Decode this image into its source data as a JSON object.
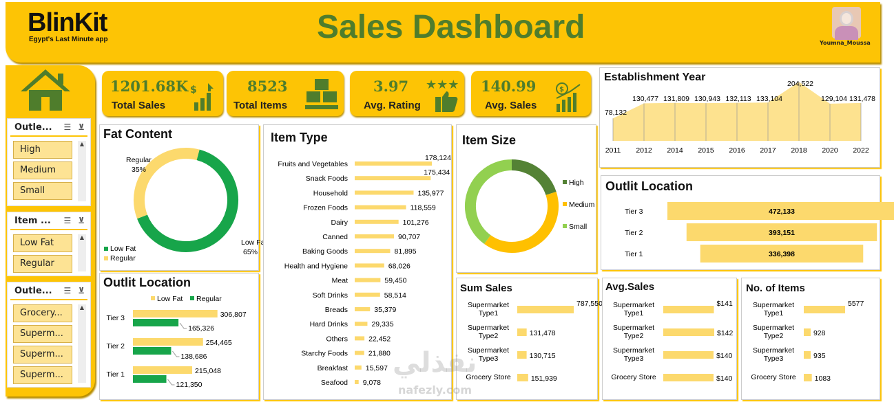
{
  "header": {
    "logo": "BlinKit",
    "tagline": "Egypt's Last Minute app",
    "title": "Sales Dashboard",
    "user": "Youmna_Moussa"
  },
  "slicers": [
    {
      "title": "Outle...",
      "items": [
        "High",
        "Medium",
        "Small"
      ]
    },
    {
      "title": "Item ...",
      "items": [
        "Low Fat",
        "Regular"
      ]
    },
    {
      "title": "Outle...",
      "items": [
        "Grocery...",
        "Superm...",
        "Superm...",
        "Superm..."
      ]
    }
  ],
  "kpis": [
    {
      "value": "1201.68K",
      "label": "Total Sales",
      "icon": "sales-chart-icon"
    },
    {
      "value": "8523",
      "label": "Total Items",
      "icon": "boxes-icon"
    },
    {
      "value": "3.97",
      "label": "Avg. Rating",
      "icon": "rating-stars-icon"
    },
    {
      "value": "140.99",
      "label": "Avg. Sales",
      "icon": "avg-sales-icon"
    }
  ],
  "chart_data": [
    {
      "id": "fat",
      "type": "pie",
      "title": "Fat Content",
      "slices": [
        {
          "name": "Low Fat",
          "value": 65,
          "pct": "65%",
          "color": "#17a54a"
        },
        {
          "name": "Regular",
          "value": 35,
          "pct": "35%",
          "color": "#fcd96d"
        }
      ]
    },
    {
      "id": "itemtype",
      "type": "bar",
      "title": "Item Type",
      "categories": [
        "Fruits and Vegetables",
        "Snack Foods",
        "Household",
        "Frozen Foods",
        "Dairy",
        "Canned",
        "Baking Goods",
        "Health and Hygiene",
        "Meat",
        "Soft Drinks",
        "Breads",
        "Hard Drinks",
        "Others",
        "Starchy Foods",
        "Breakfast",
        "Seafood"
      ],
      "values": [
        178124,
        175434,
        135977,
        118559,
        101276,
        90707,
        81895,
        68026,
        59450,
        58514,
        35379,
        29335,
        22452,
        21880,
        15597,
        9078
      ],
      "labels": [
        "178,124",
        "175,434",
        "135,977",
        "118,559",
        "101,276",
        "90,707",
        "81,895",
        "68,026",
        "59,450",
        "58,514",
        "35,379",
        "29,335",
        "22,452",
        "21,880",
        "15,597",
        "9,078"
      ]
    },
    {
      "id": "size",
      "type": "pie",
      "title": "Item Size",
      "slices": [
        {
          "name": "High",
          "value": 20,
          "color": "#548235"
        },
        {
          "name": "Medium",
          "value": 40,
          "color": "#ffc000"
        },
        {
          "name": "Small",
          "value": 40,
          "color": "#92d050"
        }
      ]
    },
    {
      "id": "estab",
      "type": "area",
      "title": "Establishment Year",
      "categories": [
        "2011",
        "2012",
        "2014",
        "2015",
        "2016",
        "2017",
        "2018",
        "2020",
        "2022"
      ],
      "values": [
        78132,
        130477,
        131809,
        130943,
        132113,
        133104,
        204522,
        129104,
        131478
      ],
      "labels": [
        "78,132",
        "130,477",
        "131,809",
        "130,943",
        "132,113",
        "133,104",
        "204,522",
        "129,104",
        "131,478"
      ]
    },
    {
      "id": "loc_funnel",
      "type": "bar",
      "title": "Outlit Location",
      "categories": [
        "Tier 3",
        "Tier 2",
        "Tier 1"
      ],
      "values": [
        472133,
        393151,
        336398
      ],
      "labels": [
        "472,133",
        "393,151",
        "336,398"
      ]
    },
    {
      "id": "loc_fat",
      "type": "bar",
      "title": "Outlit Location",
      "categories": [
        "Tier 3",
        "Tier 2",
        "Tier 1"
      ],
      "series": [
        {
          "name": "Low Fat",
          "values": [
            306807,
            254465,
            215048
          ],
          "labels": [
            "306,807",
            "254,465",
            "215,048"
          ],
          "color": "#fcd96d"
        },
        {
          "name": "Regular",
          "values": [
            165326,
            138686,
            121350
          ],
          "labels": [
            "165,326",
            "138,686",
            "121,350"
          ],
          "color": "#17a54a"
        }
      ]
    },
    {
      "id": "sumsales",
      "type": "bar",
      "title": "Sum Sales",
      "categories": [
        [
          "Supermarket",
          "Type1"
        ],
        [
          "Supermarket",
          "Type2"
        ],
        [
          "Supermarket",
          "Type3"
        ],
        [
          "Grocery Store"
        ]
      ],
      "values": [
        787550,
        131478,
        130715,
        151939
      ],
      "labels": [
        "787,550",
        "131,478",
        "130,715",
        "151,939"
      ]
    },
    {
      "id": "avgsales",
      "type": "bar",
      "title": "Avg.Sales",
      "categories": [
        [
          "Supermarket",
          "Type1"
        ],
        [
          "Supermarket",
          "Type2"
        ],
        [
          "Supermarket",
          "Type3"
        ],
        [
          "Grocery Store"
        ]
      ],
      "values": [
        141,
        142,
        140,
        140
      ],
      "labels": [
        "$141",
        "$142",
        "$140",
        "$140"
      ]
    },
    {
      "id": "items",
      "type": "bar",
      "title": "No. of Items",
      "categories": [
        [
          "Supermarket",
          "Type1"
        ],
        [
          "Supermarket",
          "Type2"
        ],
        [
          "Supermarket",
          "Type3"
        ],
        [
          "Grocery Store"
        ]
      ],
      "values": [
        5577,
        928,
        935,
        1083
      ],
      "labels": [
        "5577",
        "928",
        "935",
        "1083"
      ]
    }
  ],
  "watermark": {
    "ar": "نفذلي",
    "en": "nafezly.com"
  }
}
